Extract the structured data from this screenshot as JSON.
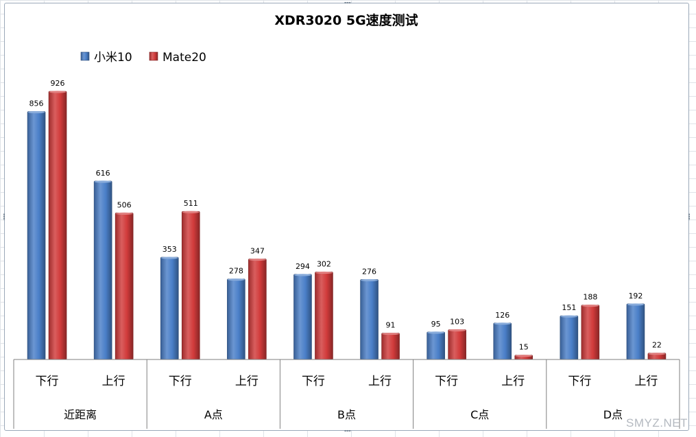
{
  "chart_data": {
    "type": "bar",
    "title": "XDR3020 5G速度测试",
    "groups": [
      "近距离",
      "A点",
      "B点",
      "C点",
      "D点"
    ],
    "subcategories": [
      "下行",
      "上行"
    ],
    "categories": [
      "近距离 下行",
      "近距离 上行",
      "A点 下行",
      "A点 上行",
      "B点 下行",
      "B点 上行",
      "C点 下行",
      "C点 上行",
      "D点 下行",
      "D点 上行"
    ],
    "series": [
      {
        "name": "小米10",
        "color": "#4a7fc8",
        "values": [
          856,
          616,
          353,
          278,
          294,
          276,
          95,
          126,
          151,
          192
        ]
      },
      {
        "name": "Mate20",
        "color": "#d13b3b",
        "values": [
          926,
          506,
          511,
          347,
          302,
          91,
          103,
          15,
          188,
          22
        ]
      }
    ],
    "ylim": [
      0,
      926
    ],
    "legend": "top-left",
    "grid": false
  },
  "watermark": "SMYZ.NET"
}
